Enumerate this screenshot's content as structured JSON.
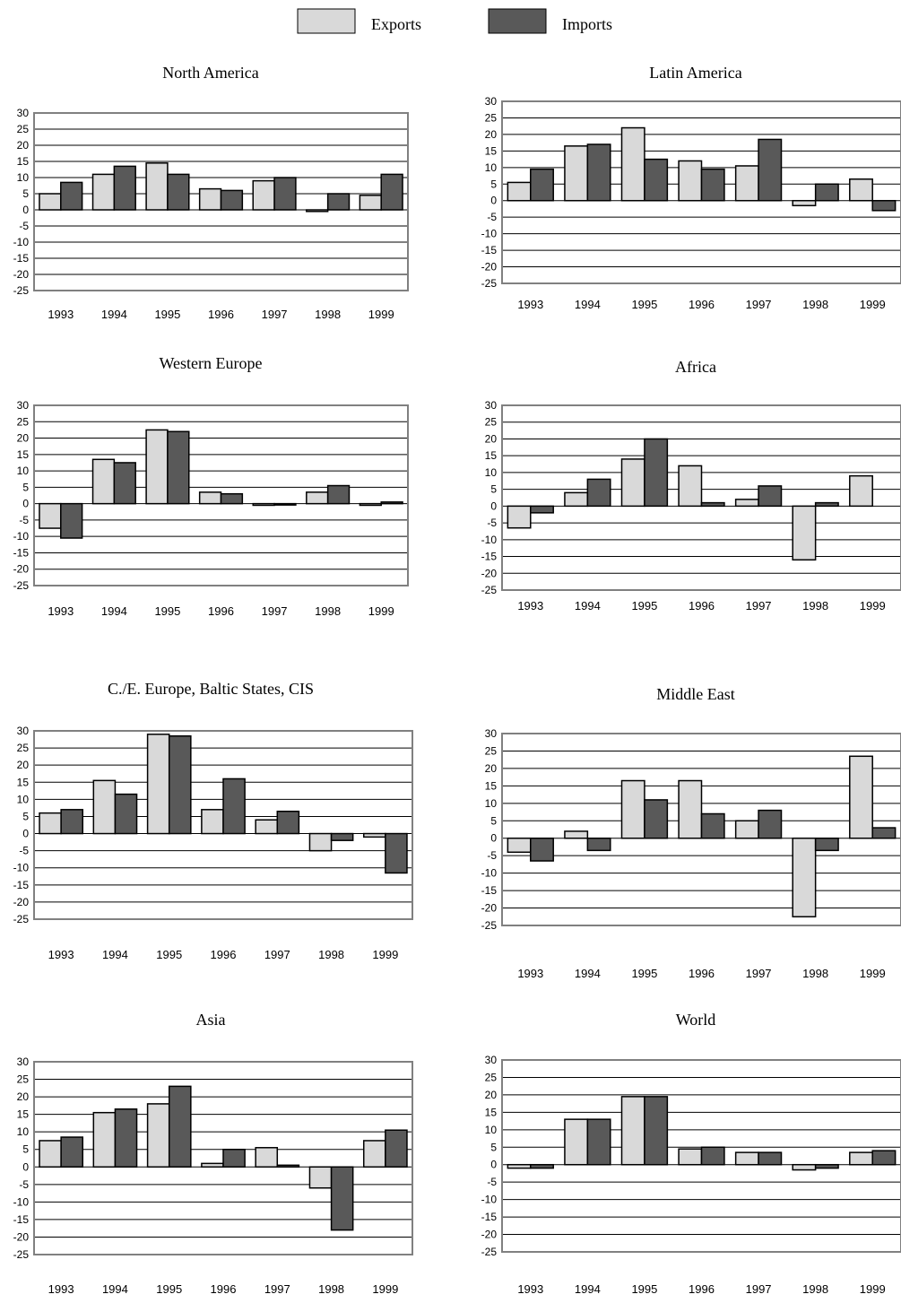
{
  "legend": {
    "items": [
      {
        "label": "Exports",
        "color": "#d9d9d9"
      },
      {
        "label": "Imports",
        "color": "#595959"
      }
    ],
    "position": "top-center"
  },
  "chart_data": [
    {
      "type": "bar",
      "title": "North America",
      "categories": [
        "1993",
        "1994",
        "1995",
        "1996",
        "1997",
        "1998",
        "1999"
      ],
      "series": [
        {
          "name": "Exports",
          "values": [
            5,
            11,
            14.5,
            6.5,
            9,
            -0.5,
            4.5
          ]
        },
        {
          "name": "Imports",
          "values": [
            8.5,
            13.5,
            11,
            6,
            10,
            5,
            11
          ]
        }
      ],
      "ylim": [
        -25,
        30
      ],
      "yticks": [
        30,
        25,
        20,
        15,
        10,
        5,
        0,
        -5,
        -10,
        -15,
        -20,
        -25
      ],
      "grid": true
    },
    {
      "type": "bar",
      "title": "Latin America",
      "categories": [
        "1993",
        "1994",
        "1995",
        "1996",
        "1997",
        "1998",
        "1999"
      ],
      "series": [
        {
          "name": "Exports",
          "values": [
            5.5,
            16.5,
            22,
            12,
            10.5,
            -1.5,
            6.5
          ]
        },
        {
          "name": "Imports",
          "values": [
            9.5,
            17,
            12.5,
            9.5,
            18.5,
            5,
            -3
          ]
        }
      ],
      "ylim": [
        -25,
        30
      ],
      "yticks": [
        30,
        25,
        20,
        15,
        10,
        5,
        0,
        -5,
        -10,
        -15,
        -20,
        -25
      ],
      "grid": true
    },
    {
      "type": "bar",
      "title": "Western Europe",
      "categories": [
        "1993",
        "1994",
        "1995",
        "1996",
        "1997",
        "1998",
        "1999"
      ],
      "series": [
        {
          "name": "Exports",
          "values": [
            -7.5,
            13.5,
            22.5,
            3.5,
            -0.5,
            3.5,
            -0.5
          ]
        },
        {
          "name": "Imports",
          "values": [
            -10.5,
            12.5,
            22,
            3,
            -0.3,
            5.5,
            0.5
          ]
        }
      ],
      "ylim": [
        -25,
        30
      ],
      "yticks": [
        30,
        25,
        20,
        15,
        10,
        5,
        0,
        -5,
        -10,
        -15,
        -20,
        -25
      ],
      "grid": true
    },
    {
      "type": "bar",
      "title": "Africa",
      "categories": [
        "1993",
        "1994",
        "1995",
        "1996",
        "1997",
        "1998",
        "1999"
      ],
      "series": [
        {
          "name": "Exports",
          "values": [
            -6.5,
            4,
            14,
            12,
            2,
            -16,
            9
          ]
        },
        {
          "name": "Imports",
          "values": [
            -2,
            8,
            20,
            1,
            6,
            1,
            0
          ]
        }
      ],
      "ylim": [
        -25,
        30
      ],
      "yticks": [
        30,
        25,
        20,
        15,
        10,
        5,
        0,
        -5,
        -10,
        -15,
        -20,
        -25
      ],
      "grid": true
    },
    {
      "type": "bar",
      "title": "C./E. Europe, Baltic States, CIS",
      "categories": [
        "1993",
        "1994",
        "1995",
        "1996",
        "1997",
        "1998",
        "1999"
      ],
      "series": [
        {
          "name": "Exports",
          "values": [
            6,
            15.5,
            29,
            7,
            4,
            -5,
            -1
          ]
        },
        {
          "name": "Imports",
          "values": [
            7,
            11.5,
            28.5,
            16,
            6.5,
            -2,
            -11.5
          ]
        }
      ],
      "ylim": [
        -25,
        30
      ],
      "yticks": [
        30,
        25,
        20,
        15,
        10,
        5,
        0,
        -5,
        -10,
        -15,
        -20,
        -25
      ],
      "grid": true
    },
    {
      "type": "bar",
      "title": "Middle East",
      "categories": [
        "1993",
        "1994",
        "1995",
        "1996",
        "1997",
        "1998",
        "1999"
      ],
      "series": [
        {
          "name": "Exports",
          "values": [
            -4,
            2,
            16.5,
            16.5,
            5,
            -22.5,
            23.5
          ]
        },
        {
          "name": "Imports",
          "values": [
            -6.5,
            -3.5,
            11,
            7,
            8,
            -3.5,
            3
          ]
        }
      ],
      "ylim": [
        -25,
        30
      ],
      "yticks": [
        30,
        25,
        20,
        15,
        10,
        5,
        0,
        -5,
        -10,
        -15,
        -20,
        -25
      ],
      "grid": true
    },
    {
      "type": "bar",
      "title": "Asia",
      "categories": [
        "1993",
        "1994",
        "1995",
        "1996",
        "1997",
        "1998",
        "1999"
      ],
      "series": [
        {
          "name": "Exports",
          "values": [
            7.5,
            15.5,
            18,
            1,
            5.5,
            -6,
            7.5
          ]
        },
        {
          "name": "Imports",
          "values": [
            8.5,
            16.5,
            23,
            5,
            0.5,
            -18,
            10.5
          ]
        }
      ],
      "ylim": [
        -25,
        30
      ],
      "yticks": [
        30,
        25,
        20,
        15,
        10,
        5,
        0,
        -5,
        -10,
        -15,
        -20,
        -25
      ],
      "grid": true
    },
    {
      "type": "bar",
      "title": "World",
      "categories": [
        "1993",
        "1994",
        "1995",
        "1996",
        "1997",
        "1998",
        "1999"
      ],
      "series": [
        {
          "name": "Exports",
          "values": [
            -1,
            13,
            19.5,
            4.5,
            3.5,
            -1.5,
            3.5
          ]
        },
        {
          "name": "Imports",
          "values": [
            -1,
            13,
            19.5,
            5,
            3.5,
            -1,
            4
          ]
        }
      ],
      "ylim": [
        -25,
        30
      ],
      "yticks": [
        30,
        25,
        20,
        15,
        10,
        5,
        0,
        -5,
        -10,
        -15,
        -20,
        -25
      ],
      "grid": true
    }
  ]
}
